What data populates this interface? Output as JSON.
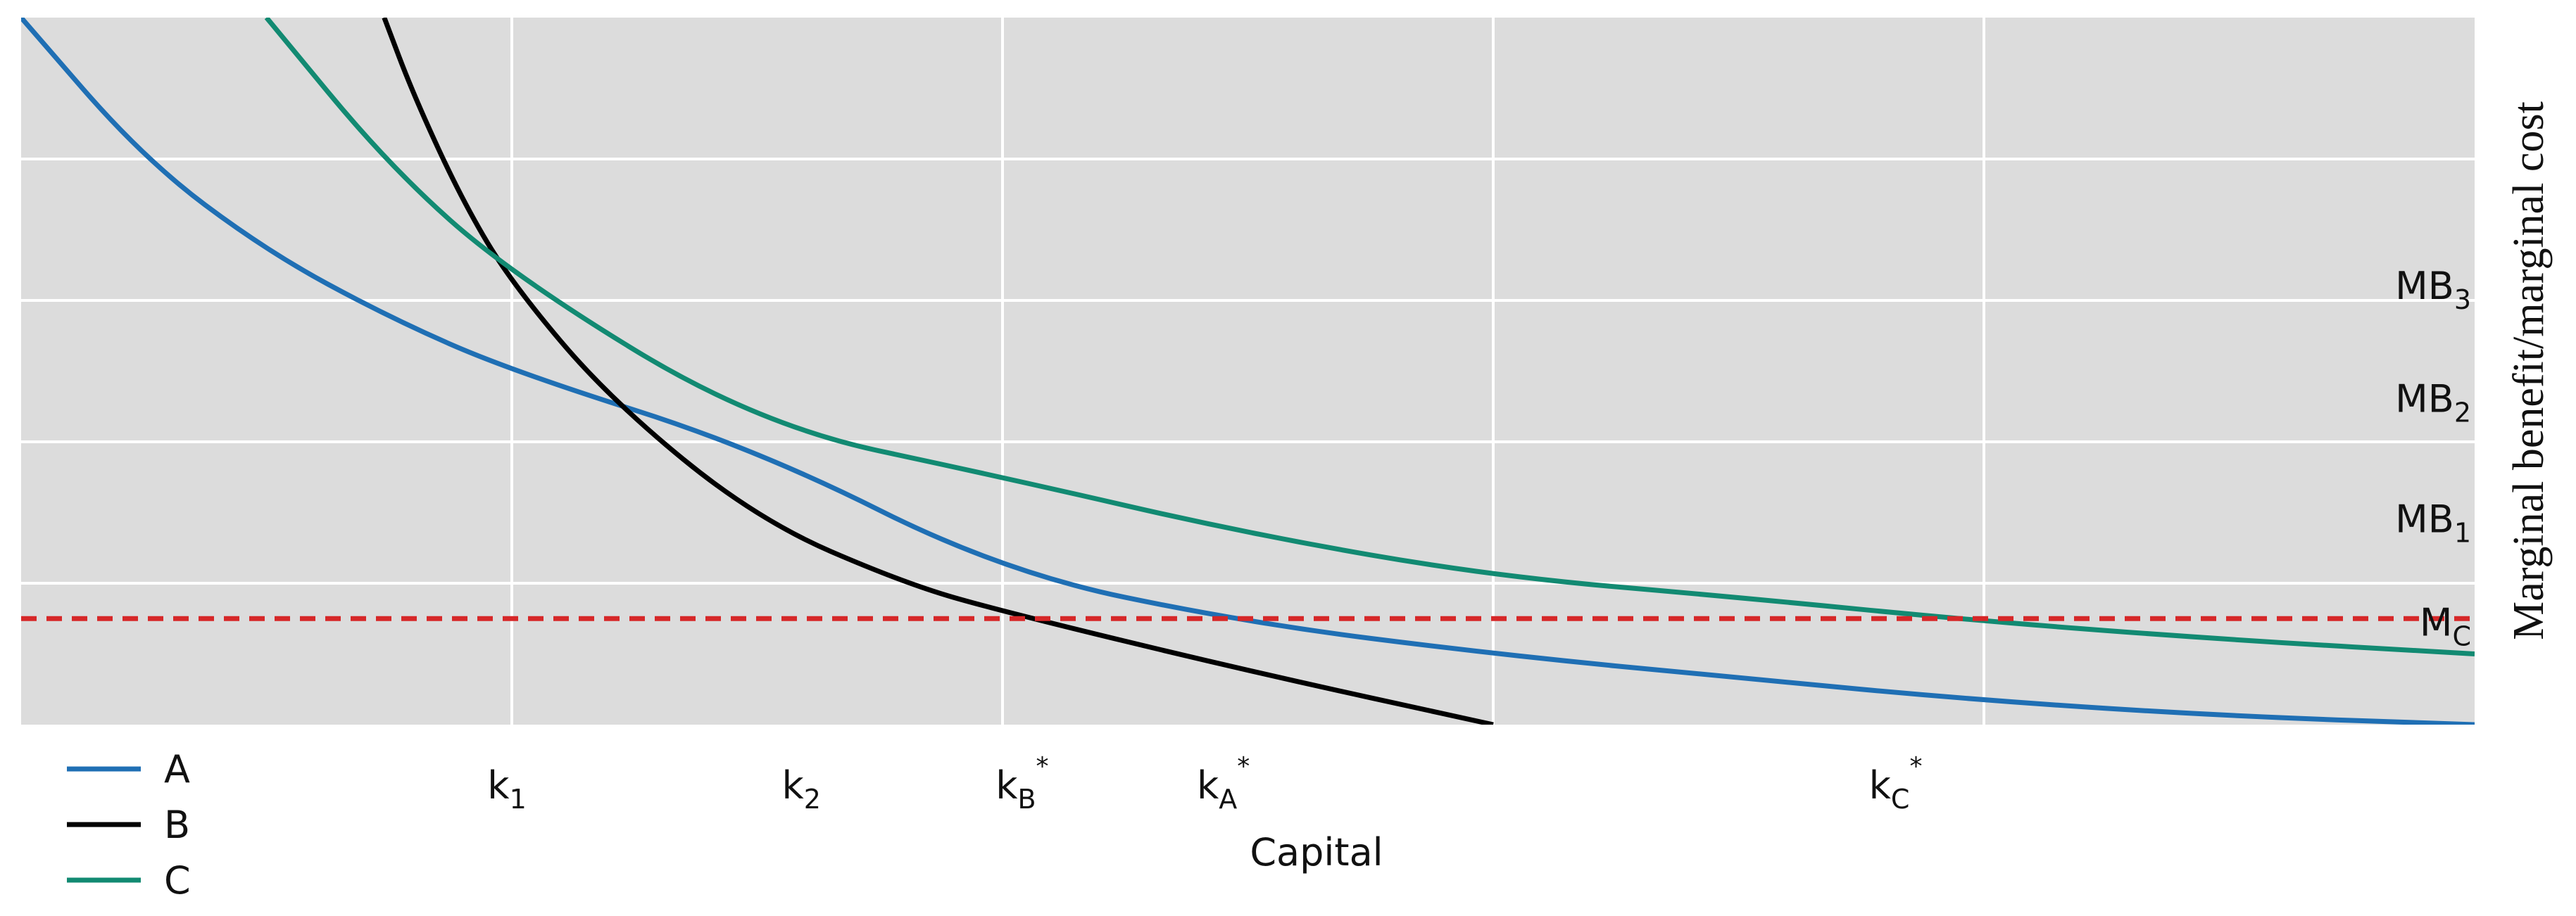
{
  "chart_data": {
    "type": "line",
    "xlabel": "Capital",
    "ylabel": "Marginal benefit/marginal cost",
    "xlim": [
      0,
      5
    ],
    "ylim": [
      0,
      5
    ],
    "grid": true,
    "background": "#dcdcdc",
    "legend_position": "bottom-left",
    "x_ticks": [
      {
        "x": 0.99,
        "label": "k",
        "sub": "1",
        "sup": ""
      },
      {
        "x": 1.59,
        "label": "k",
        "sub": "2",
        "sup": ""
      },
      {
        "x": 2.04,
        "label": "k",
        "sub": "B",
        "sup": "*"
      },
      {
        "x": 2.45,
        "label": "k",
        "sub": "A",
        "sup": "*"
      },
      {
        "x": 3.82,
        "label": "k",
        "sub": "C",
        "sup": "*"
      }
    ],
    "y_ticks": [
      {
        "y": 3.1,
        "label": "MB",
        "sub": "3"
      },
      {
        "y": 2.3,
        "label": "MB",
        "sub": "2"
      },
      {
        "y": 1.45,
        "label": "MB",
        "sub": "1"
      },
      {
        "y": 0.72,
        "label": "M",
        "sub": "C"
      }
    ],
    "mc_line": {
      "y": 0.75,
      "color": "#d62728",
      "dashed": true
    },
    "series": [
      {
        "name": "A",
        "color": "#1f6fb4",
        "x": [
          0,
          0.25,
          0.5,
          0.75,
          1.0,
          1.5,
          2.0,
          2.5,
          3.0,
          3.5,
          4.0,
          4.5,
          5.0
        ],
        "y": [
          5.0,
          4.0,
          3.35,
          2.88,
          2.5,
          1.95,
          1.08,
          0.72,
          0.5,
          0.33,
          0.17,
          0.06,
          0.0
        ]
      },
      {
        "name": "B",
        "color": "#000000",
        "x": [
          0.74,
          0.8,
          0.9,
          1.0,
          1.2,
          1.5,
          1.8,
          2.0,
          2.5,
          3.0
        ],
        "y": [
          5.0,
          4.45,
          3.7,
          3.12,
          2.3,
          1.45,
          1.0,
          0.8,
          0.38,
          0.0
        ]
      },
      {
        "name": "C",
        "color": "#128a72",
        "x": [
          0.5,
          0.75,
          1.0,
          1.5,
          2.0,
          2.5,
          3.0,
          3.5,
          4.0,
          4.5,
          5.0
        ],
        "y": [
          5.0,
          3.95,
          3.18,
          2.12,
          1.75,
          1.35,
          1.05,
          0.9,
          0.73,
          0.6,
          0.5
        ]
      }
    ]
  }
}
